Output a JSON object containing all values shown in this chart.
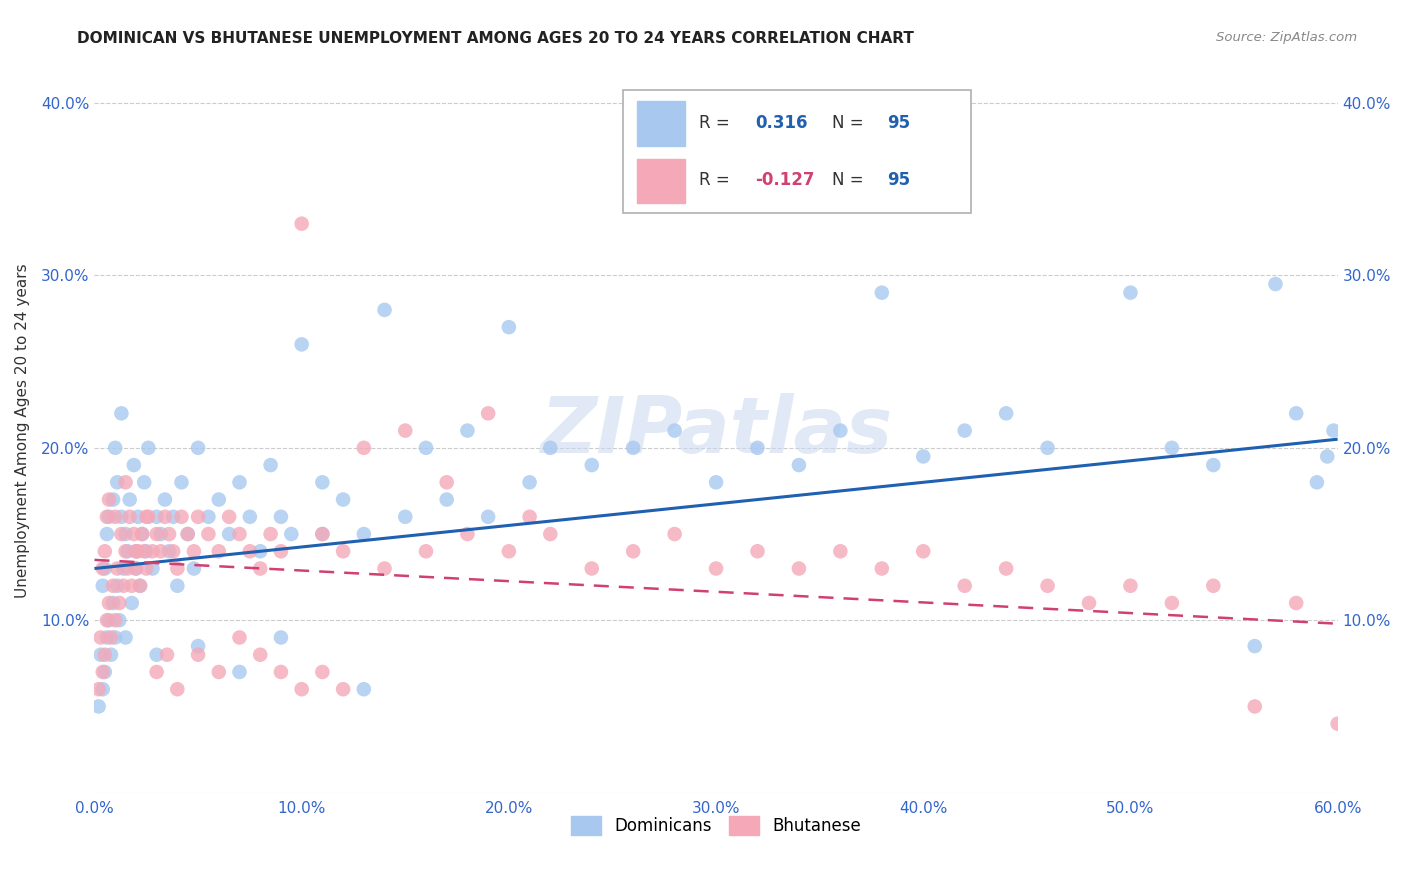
{
  "title": "DOMINICAN VS BHUTANESE UNEMPLOYMENT AMONG AGES 20 TO 24 YEARS CORRELATION CHART",
  "source": "Source: ZipAtlas.com",
  "ylabel": "Unemployment Among Ages 20 to 24 years",
  "xlim": [
    0.0,
    0.6
  ],
  "ylim": [
    0.0,
    0.42
  ],
  "ytick_positions": [
    0.0,
    0.1,
    0.2,
    0.3,
    0.4
  ],
  "xtick_positions": [
    0.0,
    0.1,
    0.2,
    0.3,
    0.4,
    0.5,
    0.6
  ],
  "legend_footer1": "Dominicans",
  "legend_footer2": "Bhutanese",
  "blue_color": "#a8c8f0",
  "pink_color": "#f4a8b8",
  "line_blue": "#2060b0",
  "line_pink": "#d04070",
  "watermark": "ZIPatlas",
  "blue_line_x0": 0.0,
  "blue_line_y0": 0.13,
  "blue_line_x1": 0.6,
  "blue_line_y1": 0.205,
  "pink_line_x0": 0.0,
  "pink_line_y0": 0.135,
  "pink_line_x1": 0.6,
  "pink_line_y1": 0.098,
  "blue_x": [
    0.002,
    0.003,
    0.004,
    0.004,
    0.005,
    0.005,
    0.006,
    0.006,
    0.007,
    0.007,
    0.008,
    0.009,
    0.009,
    0.01,
    0.01,
    0.011,
    0.011,
    0.012,
    0.013,
    0.013,
    0.014,
    0.015,
    0.015,
    0.016,
    0.017,
    0.018,
    0.019,
    0.02,
    0.021,
    0.022,
    0.023,
    0.024,
    0.025,
    0.026,
    0.028,
    0.03,
    0.032,
    0.034,
    0.036,
    0.038,
    0.04,
    0.042,
    0.045,
    0.048,
    0.05,
    0.055,
    0.06,
    0.065,
    0.07,
    0.075,
    0.08,
    0.085,
    0.09,
    0.095,
    0.1,
    0.11,
    0.12,
    0.13,
    0.14,
    0.15,
    0.16,
    0.17,
    0.18,
    0.19,
    0.2,
    0.21,
    0.22,
    0.24,
    0.26,
    0.28,
    0.3,
    0.32,
    0.34,
    0.36,
    0.38,
    0.4,
    0.42,
    0.44,
    0.46,
    0.5,
    0.52,
    0.54,
    0.56,
    0.57,
    0.58,
    0.59,
    0.595,
    0.598,
    0.02,
    0.03,
    0.05,
    0.07,
    0.09,
    0.11,
    0.13
  ],
  "blue_y": [
    0.05,
    0.08,
    0.06,
    0.12,
    0.07,
    0.13,
    0.09,
    0.15,
    0.1,
    0.16,
    0.08,
    0.11,
    0.17,
    0.09,
    0.2,
    0.12,
    0.18,
    0.1,
    0.16,
    0.22,
    0.13,
    0.15,
    0.09,
    0.14,
    0.17,
    0.11,
    0.19,
    0.13,
    0.16,
    0.12,
    0.15,
    0.18,
    0.14,
    0.2,
    0.13,
    0.16,
    0.15,
    0.17,
    0.14,
    0.16,
    0.12,
    0.18,
    0.15,
    0.13,
    0.2,
    0.16,
    0.17,
    0.15,
    0.18,
    0.16,
    0.14,
    0.19,
    0.16,
    0.15,
    0.26,
    0.18,
    0.17,
    0.15,
    0.28,
    0.16,
    0.2,
    0.17,
    0.21,
    0.16,
    0.27,
    0.18,
    0.2,
    0.19,
    0.2,
    0.21,
    0.18,
    0.2,
    0.19,
    0.21,
    0.29,
    0.195,
    0.21,
    0.22,
    0.2,
    0.29,
    0.2,
    0.19,
    0.085,
    0.295,
    0.22,
    0.18,
    0.195,
    0.21,
    0.14,
    0.08,
    0.085,
    0.07,
    0.09,
    0.15,
    0.06
  ],
  "pink_x": [
    0.002,
    0.003,
    0.004,
    0.004,
    0.005,
    0.005,
    0.006,
    0.006,
    0.007,
    0.007,
    0.008,
    0.009,
    0.01,
    0.011,
    0.012,
    0.013,
    0.014,
    0.015,
    0.016,
    0.017,
    0.018,
    0.019,
    0.02,
    0.021,
    0.022,
    0.023,
    0.024,
    0.025,
    0.026,
    0.028,
    0.03,
    0.032,
    0.034,
    0.036,
    0.038,
    0.04,
    0.042,
    0.045,
    0.048,
    0.05,
    0.055,
    0.06,
    0.065,
    0.07,
    0.075,
    0.08,
    0.085,
    0.09,
    0.1,
    0.11,
    0.12,
    0.13,
    0.14,
    0.15,
    0.16,
    0.17,
    0.18,
    0.19,
    0.2,
    0.21,
    0.22,
    0.24,
    0.26,
    0.28,
    0.3,
    0.32,
    0.34,
    0.36,
    0.38,
    0.4,
    0.42,
    0.44,
    0.46,
    0.48,
    0.5,
    0.52,
    0.54,
    0.56,
    0.58,
    0.6,
    0.01,
    0.015,
    0.02,
    0.025,
    0.03,
    0.035,
    0.04,
    0.05,
    0.06,
    0.07,
    0.08,
    0.09,
    0.1,
    0.11,
    0.12
  ],
  "pink_y": [
    0.06,
    0.09,
    0.07,
    0.13,
    0.08,
    0.14,
    0.1,
    0.16,
    0.11,
    0.17,
    0.09,
    0.12,
    0.1,
    0.13,
    0.11,
    0.15,
    0.12,
    0.14,
    0.13,
    0.16,
    0.12,
    0.15,
    0.13,
    0.14,
    0.12,
    0.15,
    0.14,
    0.13,
    0.16,
    0.14,
    0.15,
    0.14,
    0.16,
    0.15,
    0.14,
    0.13,
    0.16,
    0.15,
    0.14,
    0.16,
    0.15,
    0.14,
    0.16,
    0.15,
    0.14,
    0.13,
    0.15,
    0.14,
    0.33,
    0.15,
    0.14,
    0.2,
    0.13,
    0.21,
    0.14,
    0.18,
    0.15,
    0.22,
    0.14,
    0.16,
    0.15,
    0.13,
    0.14,
    0.15,
    0.13,
    0.14,
    0.13,
    0.14,
    0.13,
    0.14,
    0.12,
    0.13,
    0.12,
    0.11,
    0.12,
    0.11,
    0.12,
    0.05,
    0.11,
    0.04,
    0.16,
    0.18,
    0.14,
    0.16,
    0.07,
    0.08,
    0.06,
    0.08,
    0.07,
    0.09,
    0.08,
    0.07,
    0.06,
    0.07,
    0.06
  ]
}
